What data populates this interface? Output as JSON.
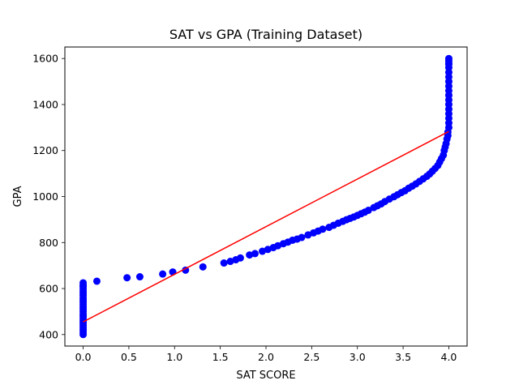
{
  "chart_data": {
    "type": "scatter",
    "title": "SAT vs GPA (Training Dataset)",
    "xlabel": "SAT SCORE",
    "ylabel": "GPA",
    "xlim": [
      -0.2,
      4.2
    ],
    "ylim": [
      350,
      1650
    ],
    "x_ticks": [
      0.0,
      0.5,
      1.0,
      1.5,
      2.0,
      2.5,
      3.0,
      3.5,
      4.0
    ],
    "x_tick_labels": [
      "0.0",
      "0.5",
      "1.0",
      "1.5",
      "2.0",
      "2.5",
      "3.0",
      "3.5",
      "4.0"
    ],
    "y_ticks": [
      400,
      600,
      800,
      1000,
      1200,
      1400,
      1600
    ],
    "y_tick_labels": [
      "400",
      "600",
      "800",
      "1000",
      "1200",
      "1400",
      "1600"
    ],
    "grid": false,
    "colors": {
      "points": "#0000ff",
      "fit_line": "#ff0000"
    },
    "series": [
      {
        "kind": "points",
        "x": [
          0,
          0,
          0,
          0,
          0,
          0,
          0,
          0,
          0,
          0,
          0,
          0,
          0,
          0,
          0,
          0,
          0,
          0,
          0,
          0,
          0,
          0,
          0,
          0,
          0.15,
          0.48,
          0.62,
          0.87,
          0.98,
          1.12,
          1.31,
          1.54,
          1.61,
          1.67,
          1.72,
          1.82,
          1.88,
          1.96,
          2.02,
          2.08,
          2.13,
          2.19,
          2.24,
          2.29,
          2.34,
          2.39,
          2.46,
          2.52,
          2.57,
          2.62,
          2.69,
          2.74,
          2.79,
          2.84,
          2.88,
          2.92,
          2.96,
          3.0,
          3.04,
          3.08,
          3.12,
          3.18,
          3.22,
          3.26,
          3.3,
          3.35,
          3.4,
          3.44,
          3.48,
          3.52,
          3.56,
          3.6,
          3.64,
          3.68,
          3.72,
          3.76,
          3.79,
          3.82,
          3.85,
          3.88,
          3.9,
          3.92,
          3.94,
          3.95,
          3.96,
          3.97,
          3.98,
          3.99,
          3.99,
          4.0,
          4.0,
          4.0,
          4.0,
          4.0,
          4.0,
          4.0,
          4.0,
          4.0,
          4.0,
          4.0,
          4.0,
          4.0,
          4.0,
          4.0,
          4.0,
          4.0,
          4.0
        ],
        "y": [
          400,
          410,
          420,
          430,
          440,
          450,
          460,
          470,
          480,
          490,
          500,
          510,
          520,
          530,
          540,
          550,
          560,
          570,
          580,
          590,
          600,
          610,
          615,
          625,
          632,
          647,
          651,
          663,
          672,
          680,
          694,
          711,
          718,
          725,
          733,
          746,
          752,
          762,
          770,
          778,
          786,
          795,
          802,
          810,
          815,
          822,
          833,
          842,
          850,
          858,
          866,
          875,
          884,
          892,
          899,
          905,
          911,
          918,
          925,
          932,
          940,
          952,
          960,
          968,
          978,
          989,
          999,
          1008,
          1017,
          1025,
          1036,
          1045,
          1055,
          1066,
          1077,
          1088,
          1098,
          1110,
          1122,
          1135,
          1150,
          1165,
          1180,
          1200,
          1215,
          1230,
          1250,
          1265,
          1280,
          1300,
          1320,
          1340,
          1360,
          1380,
          1400,
          1420,
          1440,
          1460,
          1480,
          1500,
          1520,
          1540,
          1560,
          1575,
          1590,
          1600,
          1580
        ]
      },
      {
        "kind": "line",
        "x": [
          0,
          4
        ],
        "y": [
          455,
          1283
        ]
      }
    ]
  }
}
